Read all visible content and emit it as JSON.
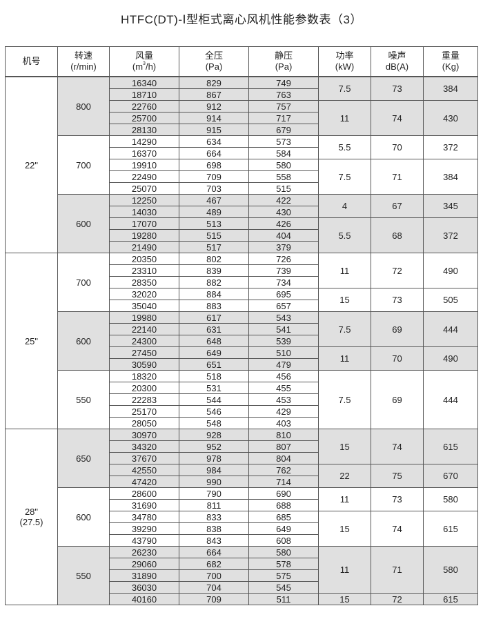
{
  "title": "HTFC(DT)-Ⅰ型柜式离心风机性能参数表（3）",
  "header": {
    "model": "机号",
    "speed": [
      "转速",
      "(r/min)"
    ],
    "flow": [
      "风量",
      "(m",
      "3",
      "/h)"
    ],
    "total_pressure": [
      "全压",
      "(Pa)"
    ],
    "static_pressure": [
      "静压",
      "(Pa)"
    ],
    "power": [
      "功率",
      "(kW)"
    ],
    "noise": [
      "噪声",
      "dB(A)"
    ],
    "weight": [
      "重量",
      "(Kg)"
    ]
  },
  "shade_color": "#e0e0e0",
  "groups": [
    {
      "model": [
        "22\""
      ],
      "speeds": [
        {
          "rpm": "800",
          "shaded": true,
          "rows": [
            [
              "16340",
              "829",
              "749"
            ],
            [
              "18710",
              "867",
              "763"
            ],
            [
              "22760",
              "912",
              "757"
            ],
            [
              "25700",
              "914",
              "717"
            ],
            [
              "28130",
              "915",
              "679"
            ]
          ],
          "power_groups": [
            {
              "power": "7.5",
              "noise": "73",
              "weight": "384",
              "rows": 2
            },
            {
              "power": "11",
              "noise": "74",
              "weight": "430",
              "rows": 3
            }
          ]
        },
        {
          "rpm": "700",
          "shaded": false,
          "rows": [
            [
              "14290",
              "634",
              "573"
            ],
            [
              "16370",
              "664",
              "584"
            ],
            [
              "19910",
              "698",
              "580"
            ],
            [
              "22490",
              "709",
              "558"
            ],
            [
              "25070",
              "703",
              "515"
            ]
          ],
          "power_groups": [
            {
              "power": "5.5",
              "noise": "70",
              "weight": "372",
              "rows": 2
            },
            {
              "power": "7.5",
              "noise": "71",
              "weight": "384",
              "rows": 3
            }
          ]
        },
        {
          "rpm": "600",
          "shaded": true,
          "rows": [
            [
              "12250",
              "467",
              "422"
            ],
            [
              "14030",
              "489",
              "430"
            ],
            [
              "17070",
              "513",
              "426"
            ],
            [
              "19280",
              "515",
              "404"
            ],
            [
              "21490",
              "517",
              "379"
            ]
          ],
          "power_groups": [
            {
              "power": "4",
              "noise": "67",
              "weight": "345",
              "rows": 2
            },
            {
              "power": "5.5",
              "noise": "68",
              "weight": "372",
              "rows": 3
            }
          ]
        }
      ]
    },
    {
      "model": [
        "25\""
      ],
      "speeds": [
        {
          "rpm": "700",
          "shaded": false,
          "rows": [
            [
              "20350",
              "802",
              "726"
            ],
            [
              "23310",
              "839",
              "739"
            ],
            [
              "28350",
              "882",
              "734"
            ],
            [
              "32020",
              "884",
              "695"
            ],
            [
              "35040",
              "883",
              "657"
            ]
          ],
          "power_groups": [
            {
              "power": "11",
              "noise": "72",
              "weight": "490",
              "rows": 3
            },
            {
              "power": "15",
              "noise": "73",
              "weight": "505",
              "rows": 2
            }
          ]
        },
        {
          "rpm": "600",
          "shaded": true,
          "rows": [
            [
              "19980",
              "617",
              "543"
            ],
            [
              "22140",
              "631",
              "541"
            ],
            [
              "24300",
              "648",
              "539"
            ],
            [
              "27450",
              "649",
              "510"
            ],
            [
              "30590",
              "651",
              "479"
            ]
          ],
          "power_groups": [
            {
              "power": "7.5",
              "noise": "69",
              "weight": "444",
              "rows": 3
            },
            {
              "power": "11",
              "noise": "70",
              "weight": "490",
              "rows": 2
            }
          ]
        },
        {
          "rpm": "550",
          "shaded": false,
          "rows": [
            [
              "18320",
              "518",
              "456"
            ],
            [
              "20300",
              "531",
              "455"
            ],
            [
              "22283",
              "544",
              "453"
            ],
            [
              "25170",
              "546",
              "429"
            ],
            [
              "28050",
              "548",
              "403"
            ]
          ],
          "power_groups": [
            {
              "power": "7.5",
              "noise": "69",
              "weight": "444",
              "rows": 5
            }
          ]
        }
      ]
    },
    {
      "model": [
        "28\"",
        "(27.5)"
      ],
      "speeds": [
        {
          "rpm": "650",
          "shaded": true,
          "rows": [
            [
              "30970",
              "928",
              "810"
            ],
            [
              "34320",
              "952",
              "807"
            ],
            [
              "37670",
              "978",
              "804"
            ],
            [
              "42550",
              "984",
              "762"
            ],
            [
              "47420",
              "990",
              "714"
            ]
          ],
          "power_groups": [
            {
              "power": "15",
              "noise": "74",
              "weight": "615",
              "rows": 3
            },
            {
              "power": "22",
              "noise": "75",
              "weight": "670",
              "rows": 2
            }
          ]
        },
        {
          "rpm": "600",
          "shaded": false,
          "rows": [
            [
              "28600",
              "790",
              "690"
            ],
            [
              "31690",
              "811",
              "688"
            ],
            [
              "34780",
              "833",
              "685"
            ],
            [
              "39290",
              "838",
              "649"
            ],
            [
              "43790",
              "843",
              "608"
            ]
          ],
          "power_groups": [
            {
              "power": "11",
              "noise": "73",
              "weight": "580",
              "rows": 2
            },
            {
              "power": "15",
              "noise": "74",
              "weight": "615",
              "rows": 3
            }
          ]
        },
        {
          "rpm": "550",
          "shaded": true,
          "rows": [
            [
              "26230",
              "664",
              "580"
            ],
            [
              "29060",
              "682",
              "578"
            ],
            [
              "31890",
              "700",
              "575"
            ],
            [
              "36030",
              "704",
              "545"
            ],
            [
              "40160",
              "709",
              "511"
            ]
          ],
          "power_groups": [
            {
              "power": "11",
              "noise": "71",
              "weight": "580",
              "rows": 4
            },
            {
              "power": "15",
              "noise": "72",
              "weight": "615",
              "rows": 1
            }
          ]
        }
      ]
    }
  ]
}
